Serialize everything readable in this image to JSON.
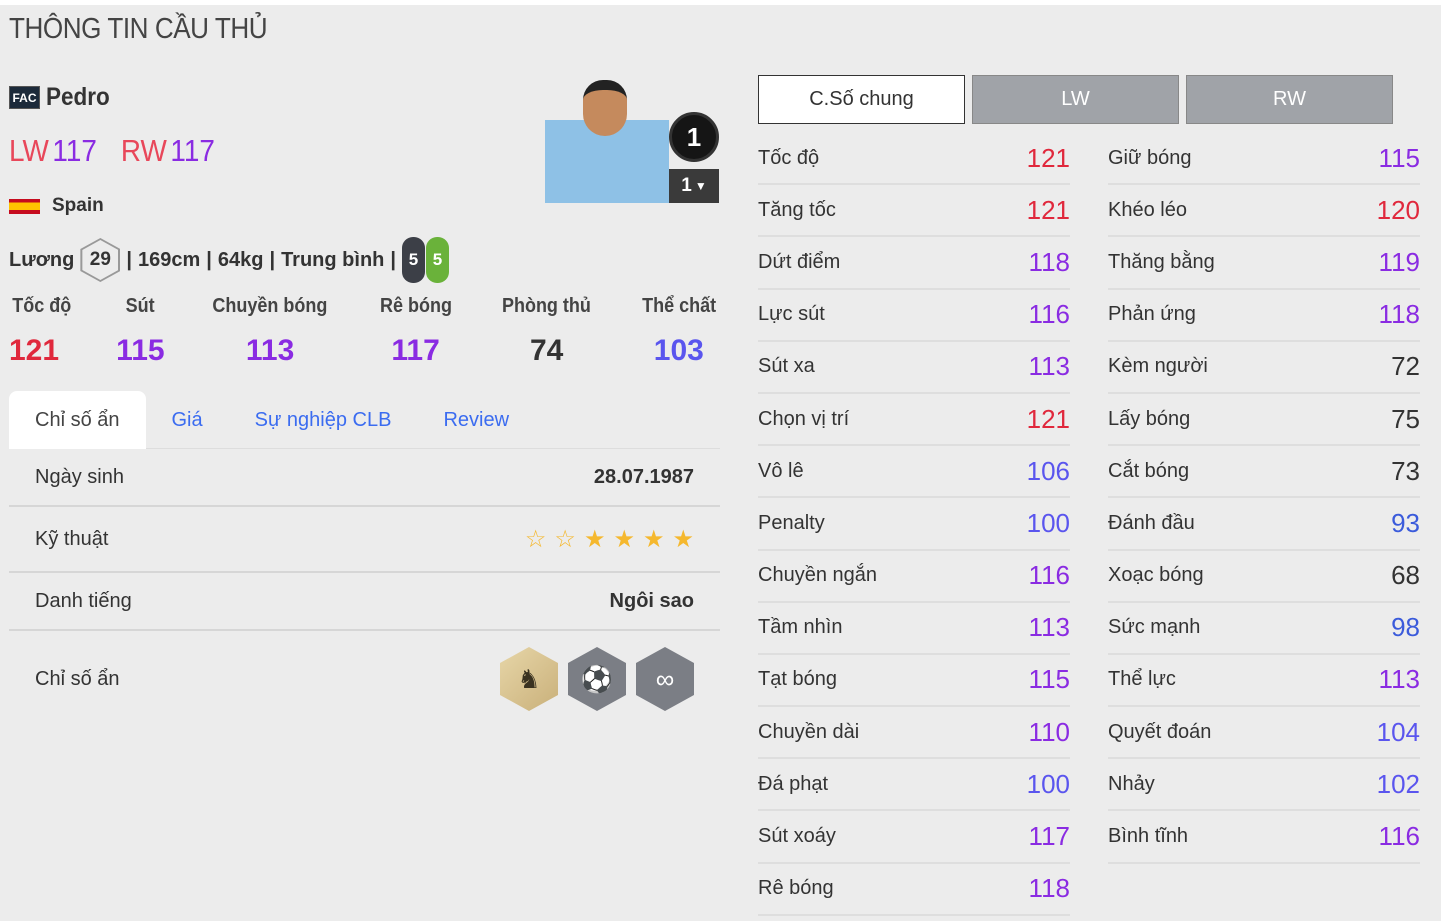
{
  "page_title": "THÔNG TIN CẦU THỦ",
  "player": {
    "season_badge": "FAC",
    "name": "Pedro",
    "positions": [
      {
        "pos": "LW",
        "ovr": "117"
      },
      {
        "pos": "RW",
        "ovr": "117"
      }
    ],
    "nation": "Spain",
    "salary_label": "Lương",
    "salary": "29",
    "height": "169cm",
    "weight": "64kg",
    "body_type": "Trung bình",
    "left_foot": "5",
    "right_foot": "5",
    "rank": "1",
    "level": "1"
  },
  "summary": [
    {
      "label": "Tốc độ",
      "value": "121"
    },
    {
      "label": "Sút",
      "value": "115"
    },
    {
      "label": "Chuyền bóng",
      "value": "113"
    },
    {
      "label": "Rê bóng",
      "value": "117"
    },
    {
      "label": "Phòng thủ",
      "value": "74"
    },
    {
      "label": "Thể chất",
      "value": "103"
    }
  ],
  "tabs": [
    "Chỉ số ẩn",
    "Giá",
    "Sự nghiệp CLB",
    "Review"
  ],
  "details": {
    "birth_label": "Ngày sinh",
    "birth": "28.07.1987",
    "skill_label": "Kỹ thuật",
    "skill_stars": 4,
    "skill_max": 6,
    "fame_label": "Danh tiếng",
    "fame": "Ngôi sao",
    "traits_label": "Chỉ số ẩn",
    "traits": [
      "horse-rider-icon",
      "speed-dribbler-icon",
      "flair-arrows-icon"
    ]
  },
  "position_tabs": [
    "C.Số chung",
    "LW",
    "RW"
  ],
  "stats_left": [
    [
      "Tốc độ",
      121
    ],
    [
      "Tăng tốc",
      121
    ],
    [
      "Dứt điểm",
      118
    ],
    [
      "Lực sút",
      116
    ],
    [
      "Sút xa",
      113
    ],
    [
      "Chọn vị trí",
      121
    ],
    [
      "Vô lê",
      106
    ],
    [
      "Penalty",
      100
    ],
    [
      "Chuyền ngắn",
      116
    ],
    [
      "Tầm nhìn",
      113
    ],
    [
      "Tạt bóng",
      115
    ],
    [
      "Chuyền dài",
      110
    ],
    [
      "Đá phạt",
      100
    ],
    [
      "Sút xoáy",
      117
    ],
    [
      "Rê bóng",
      118
    ]
  ],
  "stats_right": [
    [
      "Giữ bóng",
      115
    ],
    [
      "Khéo léo",
      120
    ],
    [
      "Thăng bằng",
      119
    ],
    [
      "Phản ứng",
      118
    ],
    [
      "Kèm người",
      72
    ],
    [
      "Lấy bóng",
      75
    ],
    [
      "Cắt bóng",
      73
    ],
    [
      "Đánh đầu",
      93
    ],
    [
      "Xoạc bóng",
      68
    ],
    [
      "Sức mạnh",
      98
    ],
    [
      "Thể lực",
      113
    ],
    [
      "Quyết đoán",
      104
    ],
    [
      "Nhảy",
      102
    ],
    [
      "Bình tĩnh",
      116
    ]
  ],
  "colors": {
    "red": "#e0283c",
    "purple": "#8a2be2",
    "violet": "#5a55ee",
    "blue": "#3b5bdb",
    "gray": "#333333",
    "link": "#3b6cf0",
    "left_foot": "#3c3f47",
    "right_foot": "#6ab23a"
  }
}
